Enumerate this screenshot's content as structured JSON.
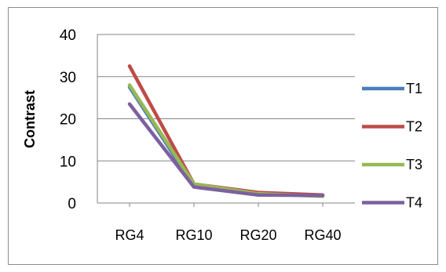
{
  "chart_data": {
    "type": "line",
    "categories": [
      "RG4",
      "RG10",
      "RG20",
      "RG40"
    ],
    "series": [
      {
        "name": "T1",
        "color": "#4a7ebb",
        "values": [
          27.5,
          4.0,
          2.1,
          1.8
        ]
      },
      {
        "name": "T2",
        "color": "#be4b48",
        "values": [
          32.5,
          4.5,
          2.5,
          1.9
        ]
      },
      {
        "name": "T3",
        "color": "#98b954",
        "values": [
          28.0,
          4.5,
          2.2,
          1.6
        ]
      },
      {
        "name": "T4",
        "color": "#7d60a0",
        "values": [
          23.5,
          3.8,
          1.9,
          1.8
        ]
      }
    ],
    "title": "",
    "xlabel": "",
    "ylabel": "Contrast",
    "ylim": [
      0,
      40
    ],
    "yticks": [
      "0",
      "10",
      "20",
      "30",
      "40"
    ],
    "grid": true,
    "legend": "right"
  }
}
